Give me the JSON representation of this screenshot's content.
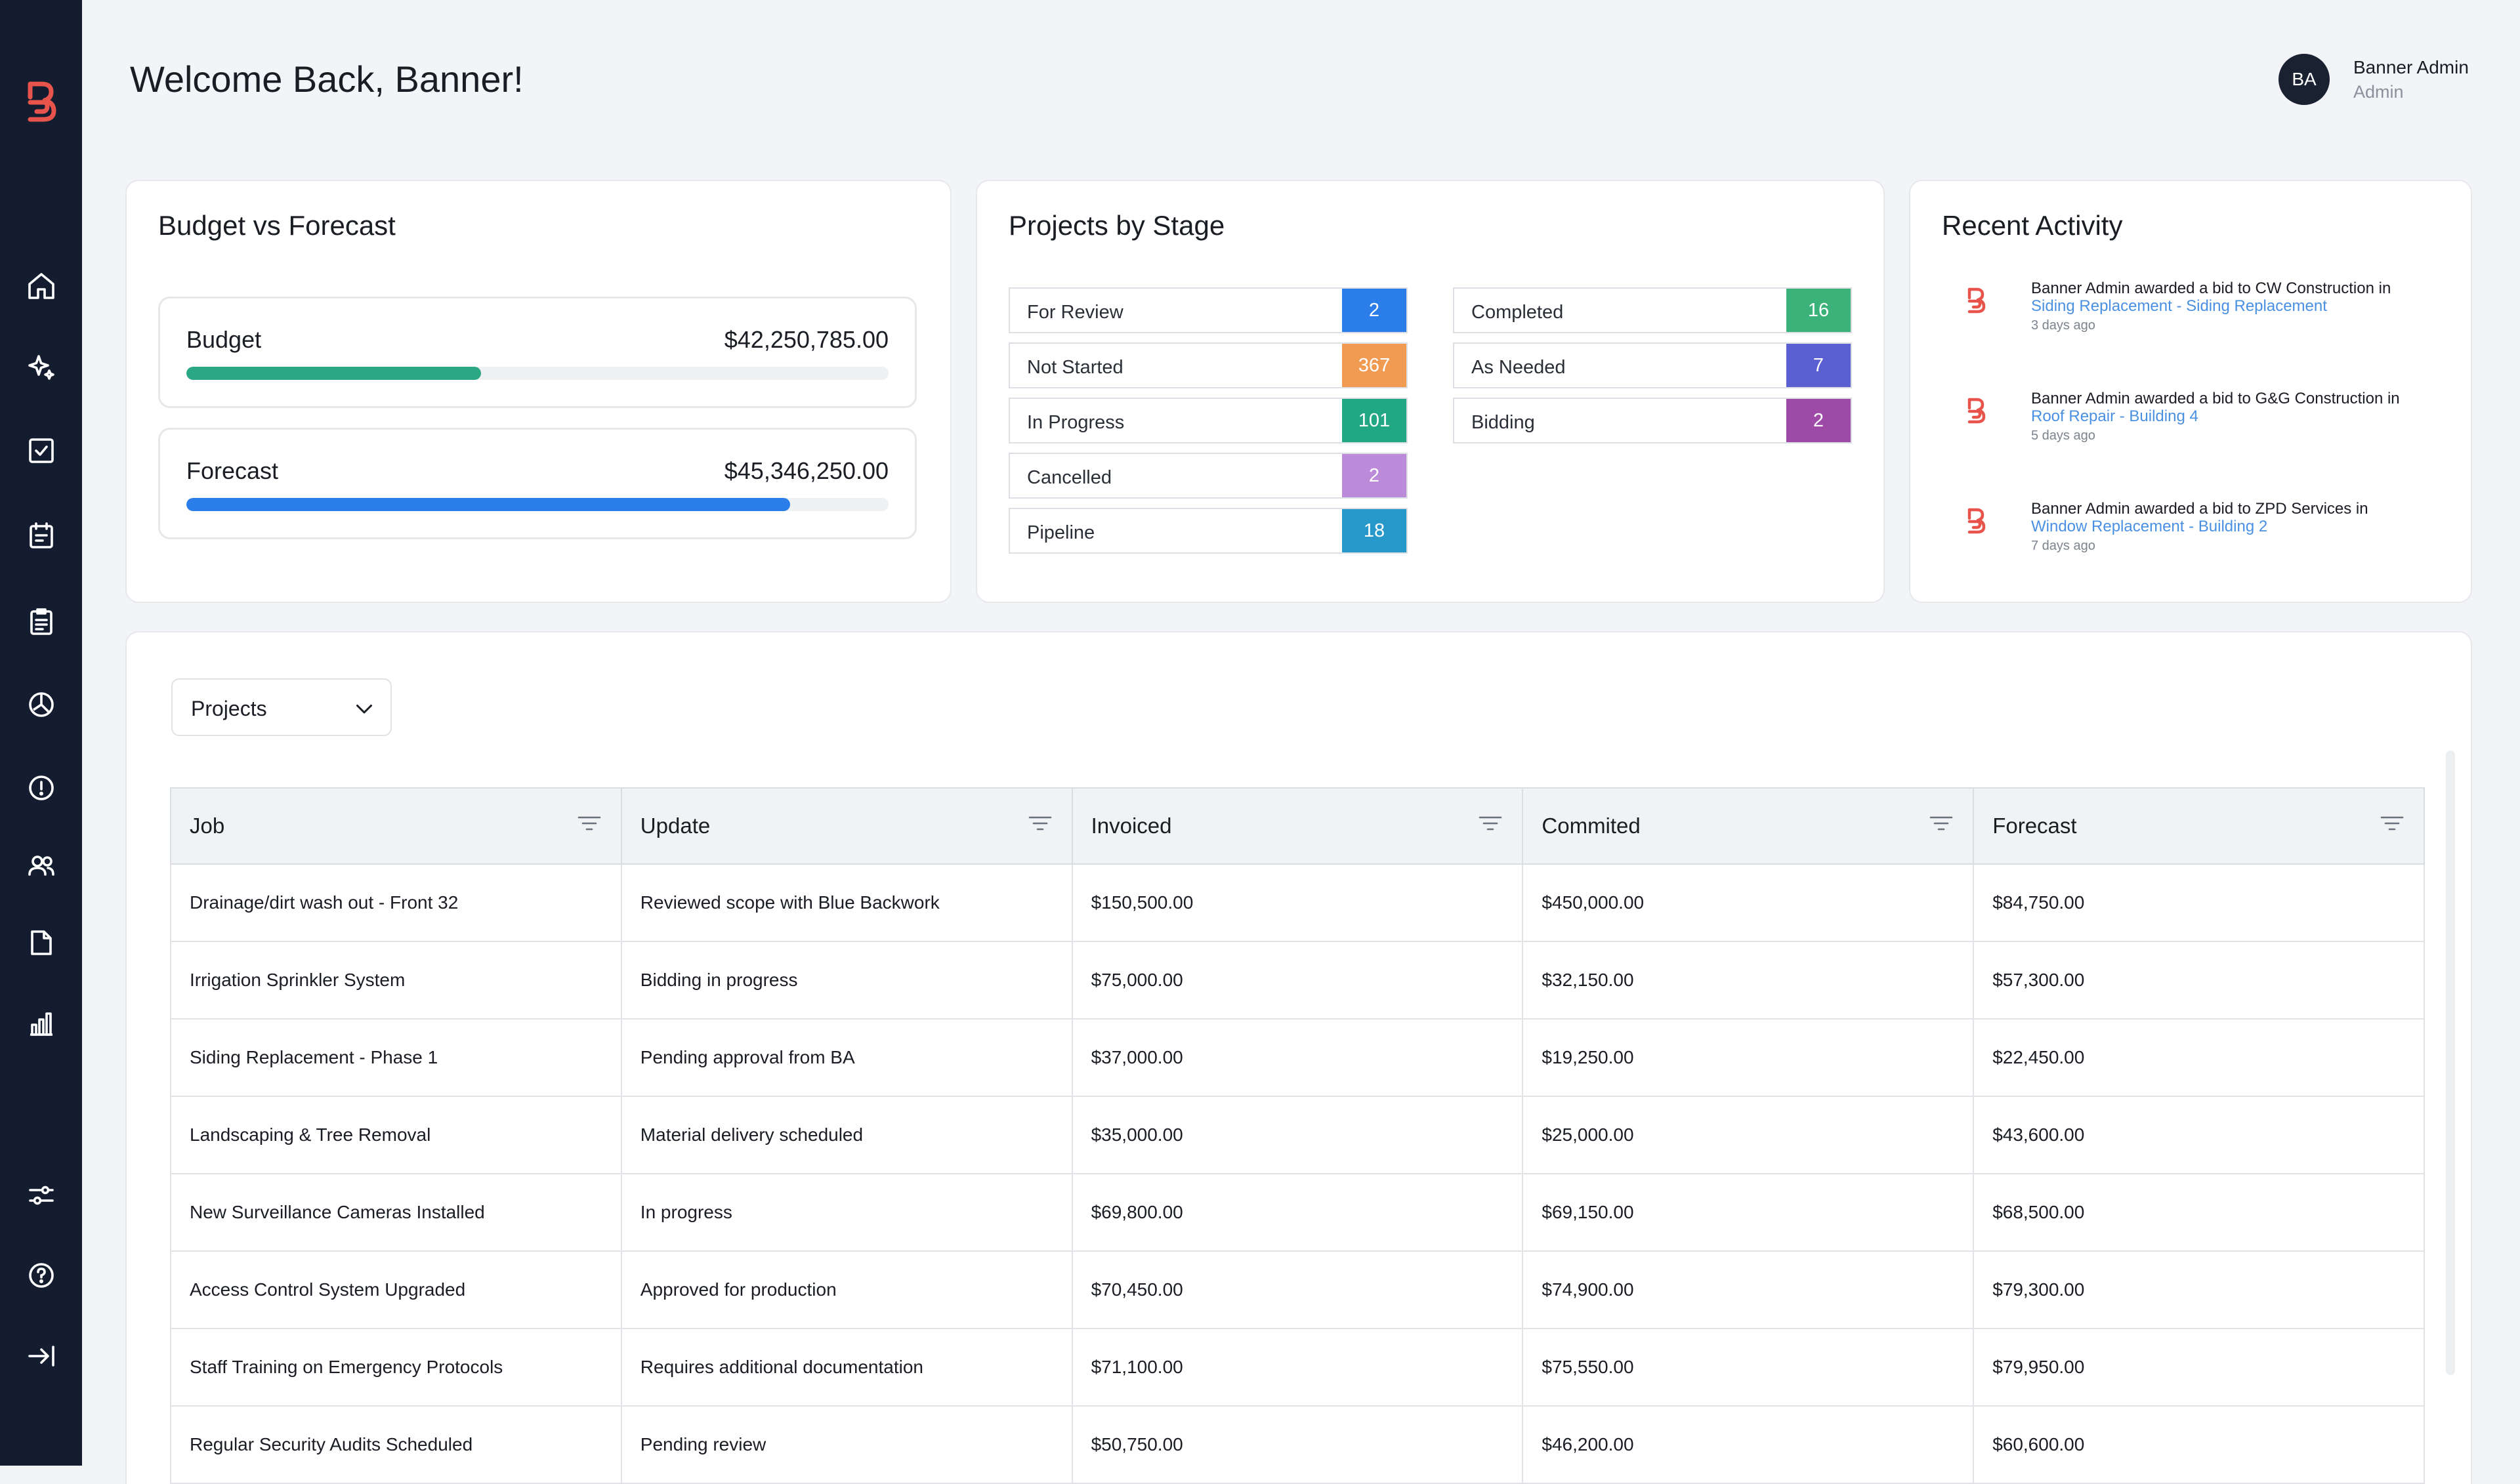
{
  "header": {
    "welcome": "Welcome Back, Banner!",
    "user": {
      "initials": "BA",
      "name": "Banner Admin",
      "role": "Admin"
    }
  },
  "sidebar": {
    "logo": "banner-logo",
    "items": [
      {
        "name": "home",
        "icon": "home-icon"
      },
      {
        "name": "sparkle",
        "icon": "sparkle-icon"
      },
      {
        "name": "tasks",
        "icon": "checkbox-icon"
      },
      {
        "name": "schedule",
        "icon": "calendar-icon"
      },
      {
        "name": "documents",
        "icon": "clipboard-icon"
      },
      {
        "name": "reports",
        "icon": "pie-chart-icon"
      },
      {
        "name": "alerts",
        "icon": "alert-icon"
      },
      {
        "name": "contacts",
        "icon": "users-icon"
      },
      {
        "name": "files",
        "icon": "file-icon"
      },
      {
        "name": "analytics",
        "icon": "bar-chart-icon"
      }
    ],
    "bottom_items": [
      {
        "name": "settings",
        "icon": "sliders-icon"
      },
      {
        "name": "help",
        "icon": "help-icon"
      },
      {
        "name": "collapse",
        "icon": "collapse-icon"
      }
    ]
  },
  "budget_forecast": {
    "title": "Budget vs Forecast",
    "items": [
      {
        "label": "Budget",
        "value": "$42,250,785.00",
        "progress_percent": 42,
        "color": "#2aa883"
      },
      {
        "label": "Forecast",
        "value": "$45,346,250.00",
        "progress_percent": 86,
        "color": "#2b7de9"
      }
    ]
  },
  "projects_by_stage": {
    "title": "Projects by Stage",
    "left": [
      {
        "label": "For Review",
        "count": "2",
        "color": "#2b7de9"
      },
      {
        "label": "Not Started",
        "count": "367",
        "color": "#f19a52"
      },
      {
        "label": "In Progress",
        "count": "101",
        "color": "#22a785"
      },
      {
        "label": "Cancelled",
        "count": "2",
        "color": "#bb8ad9"
      },
      {
        "label": "Pipeline",
        "count": "18",
        "color": "#2698c9"
      }
    ],
    "right": [
      {
        "label": "Completed",
        "count": "16",
        "color": "#3bb27a"
      },
      {
        "label": "As Needed",
        "count": "7",
        "color": "#5a5fd2"
      },
      {
        "label": "Bidding",
        "count": "2",
        "color": "#9e4ba8"
      }
    ]
  },
  "recent_activity": {
    "title": "Recent Activity",
    "items": [
      {
        "text": "Banner Admin  awarded a bid to CW Construction in",
        "link": "Siding Replacement - Siding Replacement",
        "time": "3 days ago"
      },
      {
        "text": "Banner Admin awarded a bid to G&G Construction in",
        "link": "Roof Repair - Building 4",
        "time": "5 days ago"
      },
      {
        "text": "Banner Admin awarded a bid to ZPD Services in",
        "link": "Window Replacement - Building 2",
        "time": "7 days ago"
      }
    ]
  },
  "projects_table": {
    "dropdown": "Projects",
    "columns": [
      "Job",
      "Update",
      "Invoiced",
      "Commited",
      "Forecast"
    ],
    "rows": [
      [
        "Drainage/dirt wash out - Front 32",
        "Reviewed scope with Blue Backwork",
        "$150,500.00",
        "$450,000.00",
        "$84,750.00"
      ],
      [
        "Irrigation Sprinkler System",
        "Bidding in progress",
        "$75,000.00",
        "$32,150.00",
        "$57,300.00"
      ],
      [
        "Siding Replacement - Phase 1",
        "Pending approval from BA",
        "$37,000.00",
        "$19,250.00",
        "$22,450.00"
      ],
      [
        "Landscaping & Tree Removal",
        "Material delivery scheduled",
        "$35,000.00",
        "$25,000.00",
        "$43,600.00"
      ],
      [
        "New Surveillance Cameras Installed",
        "In progress",
        "$69,800.00",
        "$69,150.00",
        "$68,500.00"
      ],
      [
        "Access Control System Upgraded",
        "Approved for production",
        "$70,450.00",
        "$74,900.00",
        "$79,300.00"
      ],
      [
        "Staff Training on Emergency Protocols",
        "Requires additional documentation",
        "$71,100.00",
        "$75,550.00",
        "$79,950.00"
      ],
      [
        "Regular Security Audits Scheduled",
        "Pending review",
        "$50,750.00",
        "$46,200.00",
        "$60,600.00"
      ]
    ]
  },
  "colors": {
    "sidebar": "#141d2f",
    "brand": "#e8544b",
    "link": "#4a90e2"
  }
}
